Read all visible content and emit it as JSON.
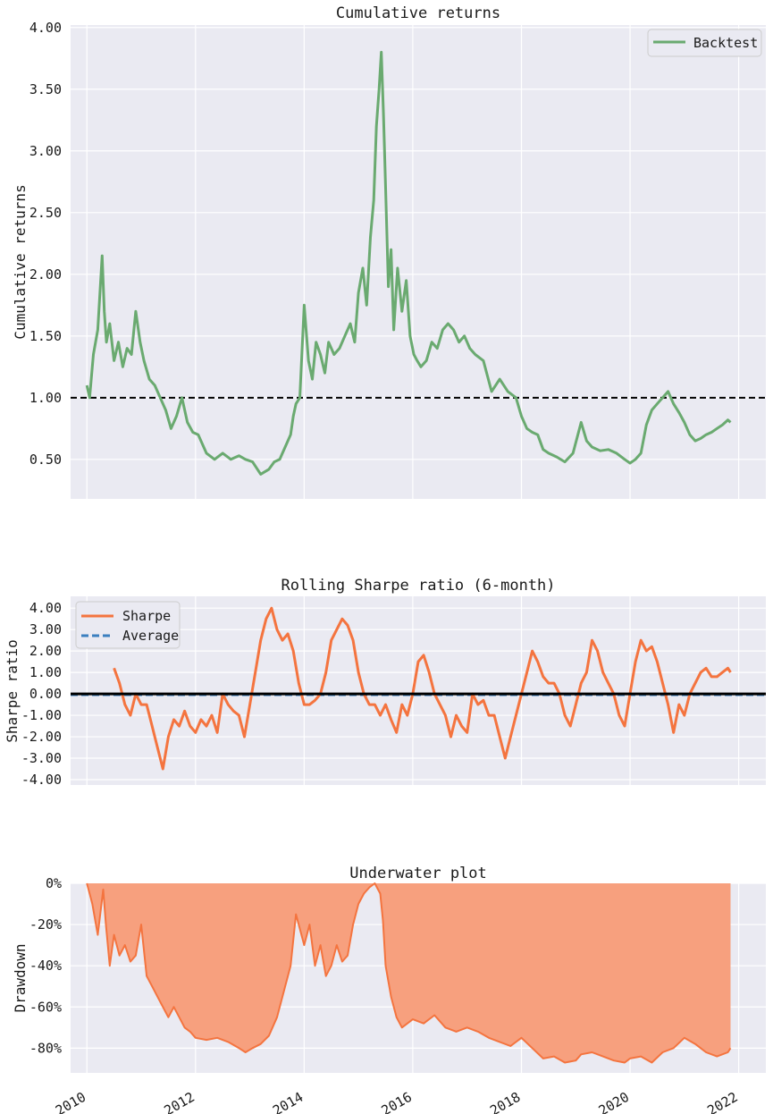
{
  "chart_data": [
    {
      "type": "line",
      "title": "Cumulative returns",
      "xlabel": "",
      "ylabel": "Cumulative returns",
      "xlim": [
        2009.7,
        2022.5
      ],
      "ylim": [
        0.18,
        4.02
      ],
      "y_ticks": [
        0.5,
        1.0,
        1.5,
        2.0,
        2.5,
        3.0,
        3.5,
        4.0
      ],
      "y_tick_labels": [
        "0.50",
        "1.00",
        "1.50",
        "2.00",
        "2.50",
        "3.00",
        "3.50",
        "4.00"
      ],
      "grid": true,
      "legend": "top-right",
      "reference_line": {
        "y": 1.0,
        "style": "dashed",
        "color": "#000000"
      },
      "series": [
        {
          "name": "Backtest",
          "color": "#6aaa70",
          "x": [
            2010.0,
            2010.05,
            2010.12,
            2010.2,
            2010.28,
            2010.32,
            2010.36,
            2010.42,
            2010.5,
            2010.58,
            2010.66,
            2010.74,
            2010.82,
            2010.9,
            2010.98,
            2011.05,
            2011.15,
            2011.25,
            2011.35,
            2011.45,
            2011.55,
            2011.65,
            2011.75,
            2011.85,
            2011.95,
            2012.05,
            2012.2,
            2012.35,
            2012.5,
            2012.65,
            2012.8,
            2012.92,
            2013.05,
            2013.2,
            2013.35,
            2013.45,
            2013.55,
            2013.65,
            2013.75,
            2013.8,
            2013.85,
            2013.92,
            2014.0,
            2014.08,
            2014.15,
            2014.22,
            2014.3,
            2014.38,
            2014.45,
            2014.55,
            2014.65,
            2014.75,
            2014.85,
            2014.93,
            2015.0,
            2015.08,
            2015.15,
            2015.22,
            2015.28,
            2015.33,
            2015.38,
            2015.42,
            2015.46,
            2015.5,
            2015.55,
            2015.6,
            2015.65,
            2015.72,
            2015.8,
            2015.88,
            2015.95,
            2016.02,
            2016.08,
            2016.15,
            2016.25,
            2016.35,
            2016.45,
            2016.55,
            2016.65,
            2016.75,
            2016.85,
            2016.95,
            2017.05,
            2017.15,
            2017.3,
            2017.45,
            2017.6,
            2017.75,
            2017.9,
            2018.0,
            2018.1,
            2018.2,
            2018.3,
            2018.4,
            2018.5,
            2018.65,
            2018.8,
            2018.95,
            2019.1,
            2019.2,
            2019.3,
            2019.45,
            2019.6,
            2019.75,
            2019.9,
            2020.0,
            2020.1,
            2020.2,
            2020.3,
            2020.4,
            2020.5,
            2020.6,
            2020.7,
            2020.8,
            2020.9,
            2021.0,
            2021.1,
            2021.2,
            2021.3,
            2021.4,
            2021.5,
            2021.6,
            2021.7,
            2021.8,
            2021.85
          ],
          "y": [
            1.1,
            1.0,
            1.35,
            1.55,
            2.15,
            1.7,
            1.45,
            1.6,
            1.3,
            1.45,
            1.25,
            1.4,
            1.35,
            1.7,
            1.45,
            1.3,
            1.15,
            1.1,
            1.0,
            0.9,
            0.75,
            0.85,
            1.0,
            0.8,
            0.72,
            0.7,
            0.55,
            0.5,
            0.55,
            0.5,
            0.53,
            0.5,
            0.48,
            0.38,
            0.42,
            0.48,
            0.5,
            0.6,
            0.7,
            0.85,
            0.95,
            1.0,
            1.75,
            1.3,
            1.15,
            1.45,
            1.35,
            1.2,
            1.45,
            1.35,
            1.4,
            1.5,
            1.6,
            1.45,
            1.85,
            2.05,
            1.75,
            2.3,
            2.6,
            3.2,
            3.5,
            3.8,
            3.3,
            2.7,
            1.9,
            2.2,
            1.55,
            2.05,
            1.7,
            1.95,
            1.5,
            1.35,
            1.3,
            1.25,
            1.3,
            1.45,
            1.4,
            1.55,
            1.6,
            1.55,
            1.45,
            1.5,
            1.4,
            1.35,
            1.3,
            1.05,
            1.15,
            1.05,
            1.0,
            0.85,
            0.75,
            0.72,
            0.7,
            0.58,
            0.55,
            0.52,
            0.48,
            0.55,
            0.8,
            0.65,
            0.6,
            0.57,
            0.58,
            0.55,
            0.5,
            0.47,
            0.5,
            0.55,
            0.78,
            0.9,
            0.95,
            1.0,
            1.05,
            0.95,
            0.88,
            0.8,
            0.7,
            0.65,
            0.67,
            0.7,
            0.72,
            0.75,
            0.78,
            0.82,
            0.8
          ]
        }
      ]
    },
    {
      "type": "line",
      "title": "Rolling Sharpe ratio (6-month)",
      "xlabel": "",
      "ylabel": "Sharpe ratio",
      "xlim": [
        2009.7,
        2022.5
      ],
      "ylim": [
        -4.25,
        4.55
      ],
      "y_ticks": [
        -4,
        -3,
        -2,
        -1,
        0,
        1,
        2,
        3,
        4
      ],
      "y_tick_labels": [
        "-4.00",
        "-3.00",
        "-2.00",
        "-1.00",
        "0.00",
        "1.00",
        "2.00",
        "3.00",
        "4.00"
      ],
      "grid": true,
      "legend": "top-left",
      "reference_line": {
        "y": 0.0,
        "style": "solid",
        "color": "#000000"
      },
      "series": [
        {
          "name": "Sharpe",
          "color": "#f4743f",
          "x": [
            2010.5,
            2010.6,
            2010.7,
            2010.8,
            2010.9,
            2011.0,
            2011.1,
            2011.2,
            2011.3,
            2011.4,
            2011.5,
            2011.6,
            2011.7,
            2011.8,
            2011.9,
            2012.0,
            2012.1,
            2012.2,
            2012.3,
            2012.4,
            2012.5,
            2012.6,
            2012.7,
            2012.8,
            2012.9,
            2013.0,
            2013.1,
            2013.2,
            2013.3,
            2013.4,
            2013.5,
            2013.6,
            2013.7,
            2013.8,
            2013.9,
            2014.0,
            2014.1,
            2014.2,
            2014.3,
            2014.4,
            2014.5,
            2014.6,
            2014.7,
            2014.8,
            2014.9,
            2015.0,
            2015.1,
            2015.2,
            2015.3,
            2015.4,
            2015.5,
            2015.6,
            2015.7,
            2015.8,
            2015.9,
            2016.0,
            2016.1,
            2016.2,
            2016.3,
            2016.4,
            2016.5,
            2016.6,
            2016.7,
            2016.8,
            2016.9,
            2017.0,
            2017.1,
            2017.2,
            2017.3,
            2017.4,
            2017.5,
            2017.6,
            2017.7,
            2017.8,
            2017.9,
            2018.0,
            2018.1,
            2018.2,
            2018.3,
            2018.4,
            2018.5,
            2018.6,
            2018.7,
            2018.8,
            2018.9,
            2019.0,
            2019.1,
            2019.2,
            2019.3,
            2019.4,
            2019.5,
            2019.6,
            2019.7,
            2019.8,
            2019.9,
            2020.0,
            2020.1,
            2020.2,
            2020.3,
            2020.4,
            2020.5,
            2020.6,
            2020.7,
            2020.8,
            2020.9,
            2021.0,
            2021.1,
            2021.2,
            2021.3,
            2021.4,
            2021.5,
            2021.6,
            2021.7,
            2021.8,
            2021.85
          ],
          "y": [
            1.2,
            0.5,
            -0.5,
            -1.0,
            0.0,
            -0.5,
            -0.5,
            -1.5,
            -2.5,
            -3.5,
            -2.0,
            -1.2,
            -1.5,
            -0.8,
            -1.5,
            -1.8,
            -1.2,
            -1.5,
            -1.0,
            -1.8,
            0.0,
            -0.5,
            -0.8,
            -1.0,
            -2.0,
            -0.5,
            1.0,
            2.5,
            3.5,
            4.0,
            3.0,
            2.5,
            2.8,
            2.0,
            0.5,
            -0.5,
            -0.5,
            -0.3,
            0.0,
            1.0,
            2.5,
            3.0,
            3.5,
            3.2,
            2.5,
            1.0,
            0.0,
            -0.5,
            -0.5,
            -1.0,
            -0.5,
            -1.2,
            -1.8,
            -0.5,
            -1.0,
            0.0,
            1.5,
            1.8,
            1.0,
            0.0,
            -0.5,
            -1.0,
            -2.0,
            -1.0,
            -1.5,
            -1.8,
            0.0,
            -0.5,
            -0.3,
            -1.0,
            -1.0,
            -2.0,
            -3.0,
            -2.0,
            -1.0,
            0.0,
            1.0,
            2.0,
            1.5,
            0.8,
            0.5,
            0.5,
            0.0,
            -1.0,
            -1.5,
            -0.5,
            0.5,
            1.0,
            2.5,
            2.0,
            1.0,
            0.5,
            0.0,
            -1.0,
            -1.5,
            0.0,
            1.5,
            2.5,
            2.0,
            2.2,
            1.5,
            0.5,
            -0.5,
            -1.8,
            -0.5,
            -1.0,
            0.0,
            0.5,
            1.0,
            1.2,
            0.8,
            0.8,
            1.0,
            1.2,
            1.0
          ]
        },
        {
          "name": "Average",
          "color": "#3a7fbf",
          "x": [
            2009.7,
            2022.5
          ],
          "y": [
            -0.05,
            -0.05
          ]
        }
      ]
    },
    {
      "type": "area",
      "title": "Underwater plot",
      "xlabel": "",
      "ylabel": "Drawdown",
      "xlim": [
        2009.7,
        2022.5
      ],
      "ylim": [
        -92,
        0
      ],
      "y_ticks": [
        0,
        -20,
        -40,
        -60,
        -80
      ],
      "y_tick_labels": [
        "0%",
        "-20%",
        "-40%",
        "-60%",
        "-80%"
      ],
      "x_ticks": [
        2010,
        2012,
        2014,
        2016,
        2018,
        2020,
        2022
      ],
      "x_tick_labels": [
        "2010",
        "2012",
        "2014",
        "2016",
        "2018",
        "2020",
        "2022"
      ],
      "grid": true,
      "series": [
        {
          "name": "",
          "color": "#f4743f",
          "fill": "#f7a07e",
          "x": [
            2010.0,
            2010.05,
            2010.1,
            2010.2,
            2010.3,
            2010.35,
            2010.42,
            2010.5,
            2010.6,
            2010.7,
            2010.8,
            2010.9,
            2011.0,
            2011.1,
            2011.2,
            2011.3,
            2011.4,
            2011.5,
            2011.6,
            2011.7,
            2011.8,
            2011.9,
            2012.0,
            2012.2,
            2012.4,
            2012.6,
            2012.8,
            2012.92,
            2013.05,
            2013.2,
            2013.35,
            2013.5,
            2013.65,
            2013.75,
            2013.85,
            2014.0,
            2014.1,
            2014.2,
            2014.3,
            2014.4,
            2014.5,
            2014.6,
            2014.7,
            2014.8,
            2014.9,
            2015.0,
            2015.1,
            2015.2,
            2015.3,
            2015.4,
            2015.45,
            2015.5,
            2015.6,
            2015.7,
            2015.8,
            2016.0,
            2016.2,
            2016.4,
            2016.6,
            2016.8,
            2017.0,
            2017.2,
            2017.4,
            2017.6,
            2017.8,
            2018.0,
            2018.2,
            2018.4,
            2018.6,
            2018.8,
            2019.0,
            2019.1,
            2019.3,
            2019.5,
            2019.7,
            2019.9,
            2020.0,
            2020.2,
            2020.4,
            2020.6,
            2020.8,
            2021.0,
            2021.2,
            2021.4,
            2021.6,
            2021.8,
            2021.85
          ],
          "y": [
            0,
            -5,
            -10,
            -25,
            -3,
            -20,
            -40,
            -25,
            -35,
            -30,
            -38,
            -35,
            -20,
            -45,
            -50,
            -55,
            -60,
            -65,
            -60,
            -65,
            -70,
            -72,
            -75,
            -76,
            -75,
            -77,
            -80,
            -82,
            -80,
            -78,
            -74,
            -65,
            -50,
            -40,
            -15,
            -30,
            -20,
            -40,
            -30,
            -45,
            -40,
            -30,
            -38,
            -35,
            -20,
            -10,
            -5,
            -2,
            0,
            -5,
            -18,
            -40,
            -55,
            -65,
            -70,
            -66,
            -68,
            -64,
            -70,
            -72,
            -70,
            -72,
            -75,
            -77,
            -79,
            -75,
            -80,
            -85,
            -84,
            -87,
            -86,
            -83,
            -82,
            -84,
            -86,
            -87,
            -85,
            -84,
            -87,
            -82,
            -80,
            -75,
            -78,
            -82,
            -84,
            -82,
            -80
          ]
        }
      ]
    }
  ]
}
